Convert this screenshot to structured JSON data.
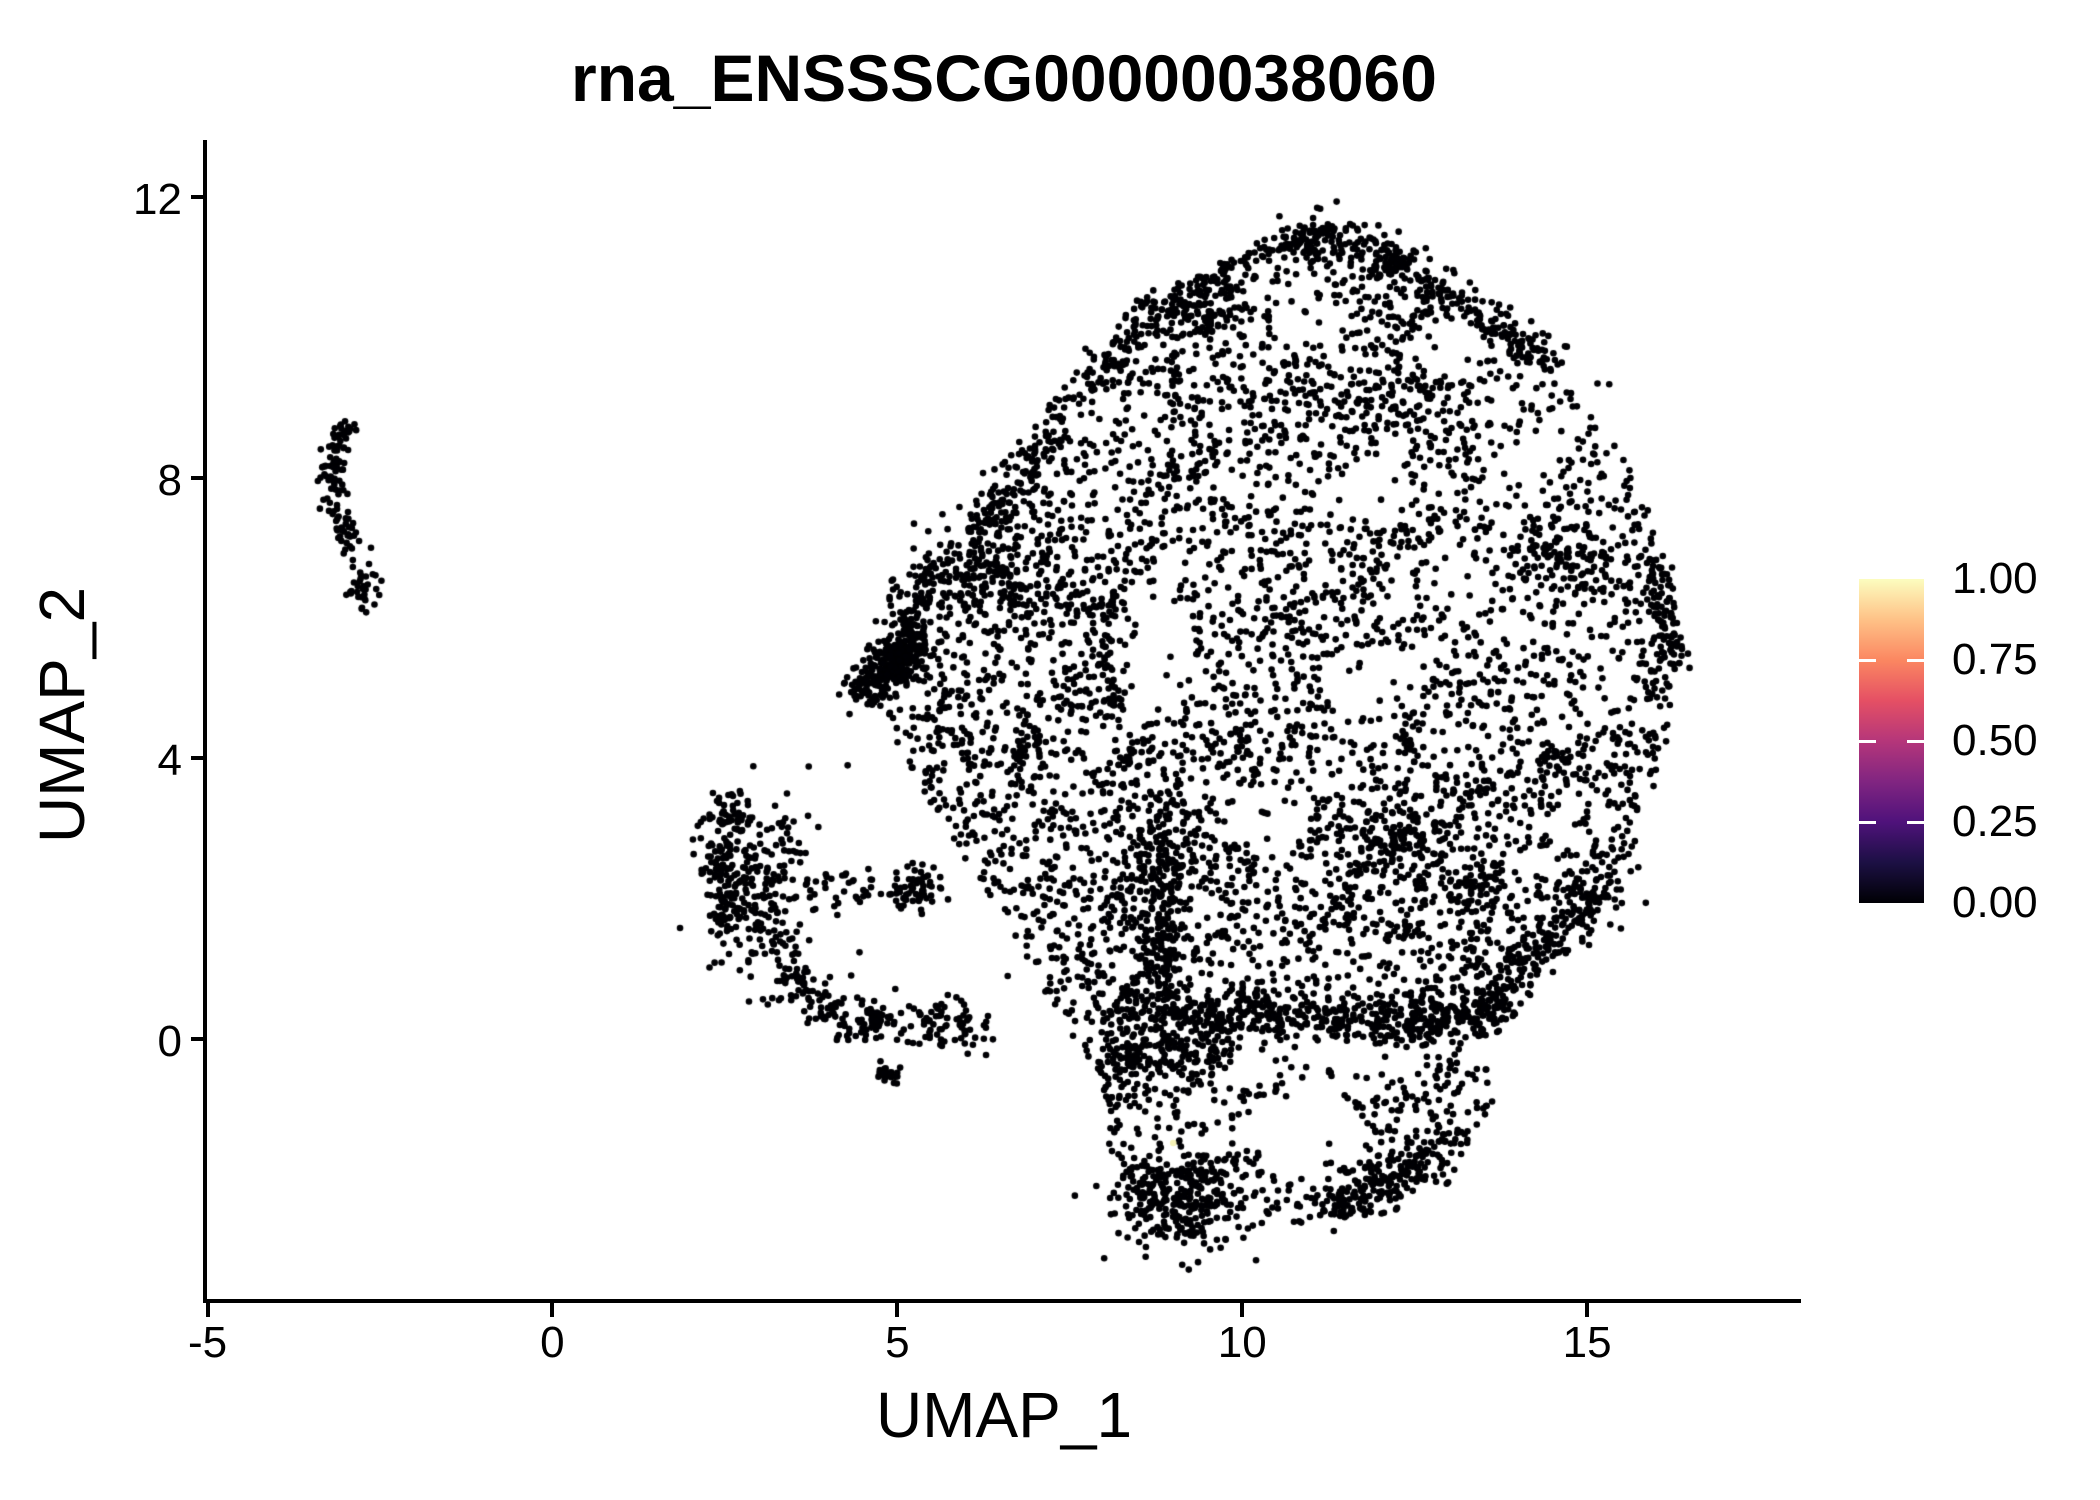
{
  "title": "rna_ENSSSCG00000038060",
  "chart_data": {
    "type": "scatter",
    "title": "rna_ENSSSCG00000038060",
    "xlabel": "UMAP_1",
    "ylabel": "UMAP_2",
    "x_ticks": [
      -5,
      0,
      5,
      10,
      15
    ],
    "x_tick_labels": [
      "-5",
      "0",
      "5",
      "10",
      "15"
    ],
    "y_ticks": [
      0,
      4,
      8,
      12
    ],
    "y_tick_labels": [
      "0",
      "4",
      "8",
      "12"
    ],
    "x_range": [
      -5,
      18.1
    ],
    "y_range": [
      -3.73,
      12.78
    ],
    "grid": false,
    "legend_position": "right",
    "point_color": "#000004",
    "point_radius_px": 3.3,
    "seed": 42,
    "colorbar": {
      "breaks": [
        0,
        0.25,
        0.5,
        0.75,
        1
      ],
      "labels": [
        "0.00",
        "0.25",
        "0.50",
        "0.75",
        "1.00"
      ],
      "tick_breaks": [
        0.25,
        0.5,
        0.75
      ],
      "colormap": "magma",
      "stops": [
        [
          0,
          "#000004"
        ],
        [
          0.125,
          "#1c1044"
        ],
        [
          0.25,
          "#4f127b"
        ],
        [
          0.375,
          "#812581"
        ],
        [
          0.5,
          "#b5367a"
        ],
        [
          0.625,
          "#e55064"
        ],
        [
          0.75,
          "#fb8761"
        ],
        [
          0.875,
          "#fec287"
        ],
        [
          1,
          "#fcfdbf"
        ]
      ]
    },
    "highlight_points": [
      {
        "x": 9.0,
        "y": -1.48,
        "value": 1.0,
        "color": "#f5f1b5"
      }
    ],
    "scatter": {
      "polygon": [
        [
          4.46,
          5.26
        ],
        [
          4.7,
          6.0
        ],
        [
          5.1,
          6.7
        ],
        [
          5.8,
          7.05
        ],
        [
          6.3,
          7.7
        ],
        [
          7.0,
          8.4
        ],
        [
          7.26,
          8.67
        ],
        [
          8.0,
          9.6
        ],
        [
          8.64,
          10.34
        ],
        [
          9.44,
          10.9
        ],
        [
          10.16,
          11.35
        ],
        [
          11.5,
          11.7
        ],
        [
          12.35,
          11.05
        ],
        [
          13.3,
          10.55
        ],
        [
          14.45,
          9.6
        ],
        [
          15.15,
          8.85
        ],
        [
          15.75,
          7.9
        ],
        [
          16.1,
          6.9
        ],
        [
          16.32,
          5.8
        ],
        [
          16.25,
          4.6
        ],
        [
          15.95,
          3.5
        ],
        [
          15.55,
          2.3
        ],
        [
          14.9,
          1.5
        ],
        [
          14.15,
          0.85
        ],
        [
          13.55,
          0.45
        ],
        [
          13.2,
          0.1
        ],
        [
          13.55,
          -0.4
        ],
        [
          13.65,
          -0.95
        ],
        [
          13.3,
          -1.7
        ],
        [
          12.7,
          -2.1
        ],
        [
          11.9,
          -2.45
        ],
        [
          11.1,
          -2.65
        ],
        [
          10.4,
          -2.65
        ],
        [
          9.9,
          -2.9
        ],
        [
          9.4,
          -3.0
        ],
        [
          8.9,
          -2.7
        ],
        [
          8.45,
          -2.3
        ],
        [
          8.12,
          -1.7
        ],
        [
          8.0,
          -1.0
        ],
        [
          7.82,
          -0.45
        ],
        [
          7.42,
          0.18
        ],
        [
          6.8,
          1.3
        ],
        [
          6.15,
          2.3
        ],
        [
          5.5,
          3.3
        ],
        [
          4.95,
          4.3
        ]
      ],
      "holes": [
        [
          8.72,
          5.5,
          0.6,
          1.0,
          0.1
        ],
        [
          13.0,
          9.85,
          0.5,
          0.4,
          0.15
        ],
        [
          11.95,
          7.8,
          0.55,
          0.45,
          0.2
        ],
        [
          11.0,
          10.15,
          0.55,
          0.4,
          0.25
        ],
        [
          10.55,
          10.75,
          0.5,
          0.45,
          0.3
        ],
        [
          11.9,
          5.1,
          0.75,
          0.5,
          0.15
        ],
        [
          10.9,
          -1.3,
          0.95,
          0.5,
          0.12
        ],
        [
          11.3,
          -0.45,
          1.5,
          0.35,
          0.3
        ],
        [
          10.35,
          3.1,
          0.6,
          0.45,
          0.2
        ],
        [
          13.05,
          6.55,
          0.5,
          0.4,
          0.25
        ],
        [
          14.45,
          8.35,
          0.6,
          0.5,
          0.4
        ],
        [
          7.8,
          8.85,
          0.4,
          0.35,
          0.25
        ]
      ],
      "generators": [
        {
          "type": "uniform",
          "n": 4300
        },
        {
          "type": "clumps",
          "count": 90,
          "min": 5,
          "max": 18,
          "sigma": 0.2
        },
        {
          "type": "band",
          "a": [
            4.52,
            4.95
          ],
          "b": [
            5.35,
            5.75
          ],
          "n": 300,
          "sigma": 0.16
        },
        {
          "type": "band",
          "a": [
            5.0,
            5.95
          ],
          "b": [
            8.6,
            10.3
          ],
          "n": 260,
          "sigma": 0.16
        },
        {
          "type": "band",
          "a": [
            8.6,
            10.3
          ],
          "b": [
            11.35,
            11.58
          ],
          "n": 180,
          "sigma": 0.15
        },
        {
          "type": "band",
          "a": [
            11.8,
            11.4
          ],
          "b": [
            14.5,
            9.65
          ],
          "n": 190,
          "sigma": 0.16
        },
        {
          "type": "band",
          "a": [
            8.15,
            0.4
          ],
          "b": [
            13.0,
            0.3
          ],
          "n": 400,
          "sigma": 0.2
        },
        {
          "type": "band",
          "a": [
            8.78,
            0.7
          ],
          "b": [
            8.95,
            2.8
          ],
          "n": 190,
          "sigma": 0.18
        },
        {
          "type": "band",
          "a": [
            8.15,
            6.5
          ],
          "b": [
            8.2,
            4.7
          ],
          "n": 120,
          "sigma": 0.16
        },
        {
          "type": "band",
          "a": [
            15.95,
            6.8
          ],
          "b": [
            16.22,
            5.3
          ],
          "n": 90,
          "sigma": 0.14
        },
        {
          "type": "band",
          "a": [
            13.6,
            0.5
          ],
          "b": [
            15.35,
            2.25
          ],
          "n": 170,
          "sigma": 0.18
        },
        {
          "type": "blob",
          "c": [
            9.0,
            -2.25
          ],
          "s": [
            0.45,
            0.35
          ],
          "n": 230
        },
        {
          "type": "band",
          "a": [
            11.4,
            -2.4
          ],
          "b": [
            13.0,
            -1.5
          ],
          "n": 170,
          "sigma": 0.2
        },
        {
          "type": "band",
          "a": [
            7.95,
            -0.35
          ],
          "b": [
            9.6,
            -0.2
          ],
          "n": 120,
          "sigma": 0.2
        },
        {
          "type": "blob",
          "c": [
            6.35,
            6.6
          ],
          "s": [
            0.5,
            0.45
          ],
          "n": 140
        },
        {
          "type": "blob",
          "c": [
            9.55,
            10.2
          ],
          "s": [
            0.18,
            0.15
          ],
          "n": 45
        },
        {
          "type": "blob",
          "c": [
            10.95,
            11.3
          ],
          "s": [
            0.2,
            0.15
          ],
          "n": 40
        },
        {
          "type": "blob",
          "c": [
            12.3,
            2.9
          ],
          "s": [
            0.3,
            0.25
          ],
          "n": 80
        },
        {
          "type": "blob",
          "c": [
            13.35,
            2.15
          ],
          "s": [
            0.25,
            0.2
          ],
          "n": 60
        },
        {
          "type": "blob",
          "c": [
            14.5,
            7.0
          ],
          "s": [
            0.3,
            0.28
          ],
          "n": 70
        },
        {
          "type": "blob",
          "c": [
            13.5,
            0.35
          ],
          "s": [
            0.22,
            0.18
          ],
          "n": 70
        },
        {
          "type": "blob",
          "c": [
            12.15,
            11.0
          ],
          "s": [
            0.2,
            0.12
          ],
          "n": 35
        },
        {
          "type": "blob",
          "c": [
            2.95,
            2.2
          ],
          "s": [
            0.38,
            0.62
          ],
          "n": 240
        },
        {
          "type": "blob",
          "c": [
            2.55,
            3.15
          ],
          "s": [
            0.2,
            0.2
          ],
          "n": 45
        },
        {
          "type": "band",
          "a": [
            2.38,
            2.7
          ],
          "b": [
            2.55,
            1.5
          ],
          "n": 70,
          "sigma": 0.12
        },
        {
          "type": "band",
          "a": [
            3.25,
            1.1
          ],
          "b": [
            4.3,
            0.15
          ],
          "n": 100,
          "sigma": 0.17
        },
        {
          "type": "band",
          "a": [
            3.8,
            2.18
          ],
          "b": [
            5.4,
            2.05
          ],
          "n": 60,
          "sigma": 0.13
        },
        {
          "type": "blob",
          "c": [
            5.35,
            2.2
          ],
          "s": [
            0.16,
            0.14
          ],
          "n": 30
        },
        {
          "type": "band",
          "a": [
            5.2,
            0.3
          ],
          "b": [
            6.15,
            0.1
          ],
          "n": 80,
          "sigma": 0.2
        },
        {
          "type": "blob",
          "c": [
            4.65,
            0.3
          ],
          "s": [
            0.14,
            0.14
          ],
          "n": 40
        },
        {
          "type": "blob",
          "c": [
            4.85,
            -0.52
          ],
          "s": [
            0.1,
            0.08
          ],
          "n": 22
        },
        {
          "type": "band",
          "a": [
            -3.1,
            8.6
          ],
          "b": [
            -3.22,
            7.75
          ],
          "n": 60,
          "sigma": 0.09
        },
        {
          "type": "band",
          "a": [
            -3.18,
            7.6
          ],
          "b": [
            -2.82,
            6.95
          ],
          "n": 38,
          "sigma": 0.09
        },
        {
          "type": "blob",
          "c": [
            -2.78,
            6.45
          ],
          "s": [
            0.13,
            0.16
          ],
          "n": 32
        },
        {
          "type": "blob",
          "c": [
            -3.0,
            8.68
          ],
          "s": [
            0.09,
            0.07
          ],
          "n": 14
        },
        {
          "type": "points",
          "pts": [
            [
              -2.63,
              7.0
            ],
            [
              -3.4,
              7.95
            ],
            [
              -2.7,
              6.08
            ],
            [
              15.15,
              9.34
            ],
            [
              15.32,
              9.33
            ],
            [
              4.28,
              3.9
            ],
            [
              4.35,
              2.25
            ],
            [
              6.6,
              0.9
            ],
            [
              7.05,
              1.7
            ],
            [
              6.3,
              3.2
            ],
            [
              7.3,
              2.6
            ],
            [
              10.2,
              -3.15
            ],
            [
              8.6,
              -3.1
            ]
          ]
        }
      ]
    }
  }
}
